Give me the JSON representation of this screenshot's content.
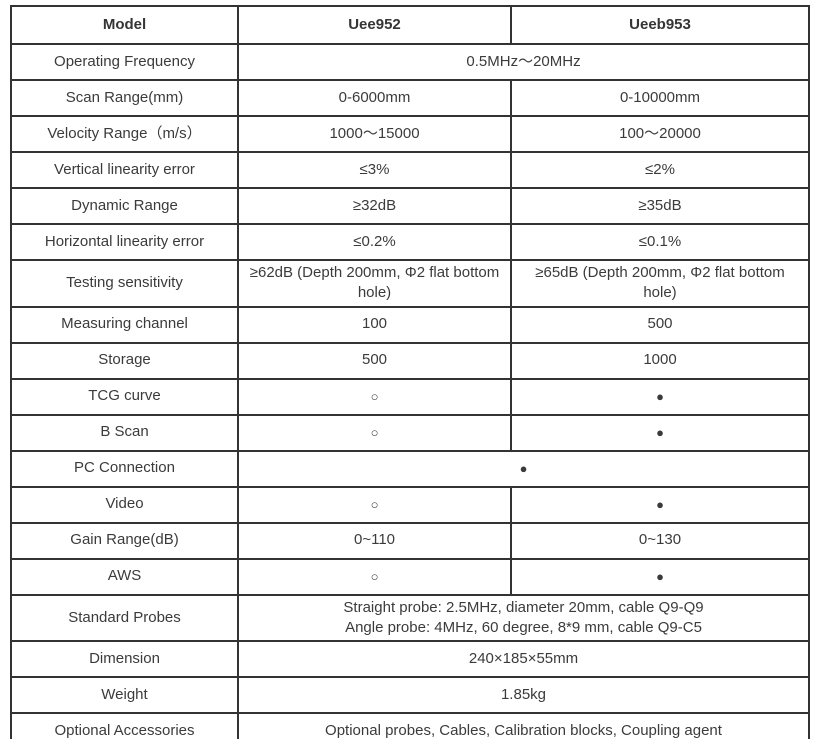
{
  "colors": {
    "border": "#333333",
    "text": "#3b3b3b",
    "background": "#ffffff"
  },
  "table": {
    "header": {
      "model": "Model",
      "col2": "Uee952",
      "col3": "Ueeb953"
    },
    "rows": [
      {
        "label": "Operating Frequency",
        "span": "0.5MHz～20MHz"
      },
      {
        "label": "Scan Range(mm)",
        "col2": "0-6000mm",
        "col3": "0-10000mm"
      },
      {
        "label": "Velocity Range（m/s）",
        "col2": "1000～15000",
        "col3": "100～20000"
      },
      {
        "label": "Vertical linearity error",
        "col2": "≤3%",
        "col3": "≤2%"
      },
      {
        "label": "Dynamic Range",
        "col2": "≥32dB",
        "col3": "≥35dB"
      },
      {
        "label": "Horizontal linearity error",
        "col2": "≤0.2%",
        "col3": "≤0.1%"
      },
      {
        "label": "Testing sensitivity",
        "col2": "≥62dB (Depth 200mm, Φ2 flat bottom hole)",
        "col3": "≥65dB (Depth 200mm, Φ2 flat bottom hole)"
      },
      {
        "label": "Measuring channel",
        "col2": "100",
        "col3": "500"
      },
      {
        "label": "Storage",
        "col2": "500",
        "col3": "1000"
      },
      {
        "label": "TCG curve",
        "col2": "○",
        "col3": "●",
        "sym": true
      },
      {
        "label": "B Scan",
        "col2": "○",
        "col3": "●",
        "sym": true
      },
      {
        "label": "PC Connection",
        "span": "●",
        "sym": true
      },
      {
        "label": "Video",
        "col2": "○",
        "col3": "●",
        "sym": true
      },
      {
        "label": "Gain Range(dB)",
        "col2": "0~110",
        "col3": "0~130"
      },
      {
        "label": "AWS",
        "col2": "○",
        "col3": "●",
        "sym": true
      },
      {
        "label": "Standard Probes",
        "span_lines": [
          "Straight probe: 2.5MHz, diameter 20mm, cable Q9-Q9",
          "Angle probe: 4MHz, 60 degree, 8*9 mm, cable Q9-C5"
        ]
      },
      {
        "label": "Dimension",
        "span": "240×185×55mm"
      },
      {
        "label": "Weight",
        "span": "1.85kg"
      },
      {
        "label": "Optional Accessories",
        "span": "Optional probes, Cables, Calibration blocks, Coupling agent"
      }
    ]
  }
}
